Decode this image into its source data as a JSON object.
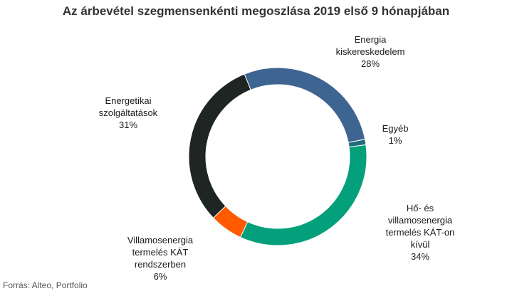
{
  "chart_data": {
    "type": "pie",
    "title": "Az árbevétel szegmensenkénti megoszlása 2019 első 9 hónapjában",
    "slices": [
      {
        "label_lines": [
          "Energia",
          "kiskereskedelem"
        ],
        "value": 28,
        "value_label": "28%",
        "color": "#3e6491"
      },
      {
        "label_lines": [
          "Egyéb"
        ],
        "value": 1,
        "value_label": "1%",
        "color": "#1f6b7a"
      },
      {
        "label_lines": [
          "Hő- és",
          "villamosenergia",
          "termelés KÁT-on",
          "kívül"
        ],
        "value": 34,
        "value_label": "34%",
        "color": "#04a07c"
      },
      {
        "label_lines": [
          "Villamosenergia",
          "termelés KÁT",
          "rendszerben"
        ],
        "value": 6,
        "value_label": "6%",
        "color": "#ff5a00"
      },
      {
        "label_lines": [
          "Energetikai",
          "szolgáltatások"
        ],
        "value": 31,
        "value_label": "31%",
        "color": "#1e2522"
      }
    ],
    "donut": true
  },
  "source": "Forrás: Alteo, Portfolio"
}
